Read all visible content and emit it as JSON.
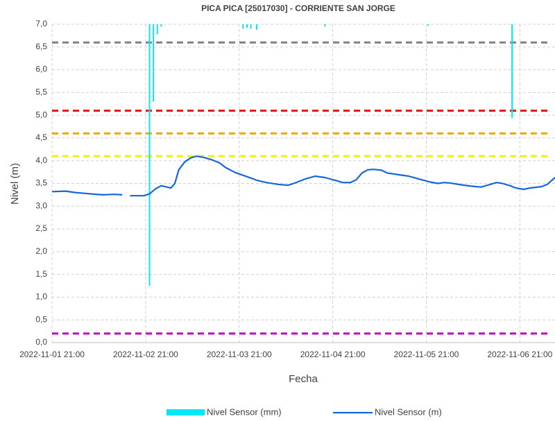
{
  "chart_data": {
    "type": "line",
    "title": "PICA PICA [25017030] - CORRIENTE SAN JORGE",
    "xlabel": "Fecha",
    "ylabel": "Nivel (m)",
    "xlim": [
      "2022-11-01 21:00",
      "2022-11-07 06:00"
    ],
    "xticks": [
      "2022-11-01 21:00",
      "2022-11-02 21:00",
      "2022-11-03 21:00",
      "2022-11-04 21:00",
      "2022-11-05 21:00",
      "2022-11-06 21:00"
    ],
    "ylim": [
      0,
      7
    ],
    "yticks": [
      {
        "value": 0,
        "label": "0,0"
      },
      {
        "value": 0.5,
        "label": "0,5"
      },
      {
        "value": 1,
        "label": "1,0"
      },
      {
        "value": 1.5,
        "label": "1,5"
      },
      {
        "value": 2,
        "label": "2,0"
      },
      {
        "value": 2.5,
        "label": "2,5"
      },
      {
        "value": 3,
        "label": "3,0"
      },
      {
        "value": 3.5,
        "label": "3,5"
      },
      {
        "value": 4,
        "label": "4,0"
      },
      {
        "value": 4.5,
        "label": "4,5"
      },
      {
        "value": 5,
        "label": "5,0"
      },
      {
        "value": 5.5,
        "label": "5,5"
      },
      {
        "value": 6,
        "label": "6,0"
      },
      {
        "value": 6.5,
        "label": "6,5"
      },
      {
        "value": 7,
        "label": "7,0"
      }
    ],
    "grid": true,
    "legend": "bottom",
    "thresholds": [
      {
        "value": 6.6,
        "color": "#808080"
      },
      {
        "value": 5.1,
        "color": "#e81010"
      },
      {
        "value": 4.6,
        "color": "#f0a800"
      },
      {
        "value": 4.1,
        "color": "#f5f000"
      },
      {
        "value": 0.2,
        "color": "#c000c0"
      }
    ],
    "bar_series": {
      "name": "Nivel Sensor (mm)",
      "color": "#00e8f8",
      "x": [
        "2022-11-02 22:00",
        "2022-11-02 23:00",
        "2022-11-03 00:00",
        "2022-11-03 01:00",
        "2022-11-03 22:00",
        "2022-11-03 23:00",
        "2022-11-04 00:00",
        "2022-11-04 01:30",
        "2022-11-04 19:00",
        "2022-11-05 21:30",
        "2022-11-06 19:00"
      ],
      "values": [
        1.25,
        5.3,
        6.78,
        6.95,
        6.9,
        6.92,
        6.9,
        6.88,
        6.95,
        6.97,
        4.94
      ]
    },
    "series": [
      {
        "name": "Nivel Sensor (m)",
        "color": "#1566d8",
        "x": [
          "2022-11-01 21:00",
          "2022-11-02 00:30",
          "2022-11-02 03:00",
          "2022-11-02 07:00",
          "2022-11-02 10:00",
          "2022-11-02 13:00",
          "2022-11-02 15:00",
          "2022-11-02 16:00",
          "2022-11-02 17:00",
          "2022-11-02 20:30",
          "2022-11-02 22:00",
          "2022-11-02 23:30",
          "2022-11-03 01:00",
          "2022-11-03 02:00",
          "2022-11-03 03:30",
          "2022-11-03 04:30",
          "2022-11-03 05:30",
          "2022-11-03 07:00",
          "2022-11-03 08:30",
          "2022-11-03 10:00",
          "2022-11-03 12:00",
          "2022-11-03 14:00",
          "2022-11-03 16:00",
          "2022-11-03 17:30",
          "2022-11-03 20:00",
          "2022-11-03 23:00",
          "2022-11-04 01:30",
          "2022-11-04 04:00",
          "2022-11-04 07:00",
          "2022-11-04 09:30",
          "2022-11-04 11:00",
          "2022-11-04 14:00",
          "2022-11-04 16:30",
          "2022-11-04 19:00",
          "2022-11-04 22:00",
          "2022-11-04 23:30",
          "2022-11-05 01:30",
          "2022-11-05 03:00",
          "2022-11-05 04:30",
          "2022-11-05 06:00",
          "2022-11-05 07:30",
          "2022-11-05 09:30",
          "2022-11-05 11:00",
          "2022-11-05 14:00",
          "2022-11-05 16:30",
          "2022-11-05 19:00",
          "2022-11-05 22:00",
          "2022-11-06 00:00",
          "2022-11-06 01:30",
          "2022-11-06 03:00",
          "2022-11-06 06:00",
          "2022-11-06 08:30",
          "2022-11-06 11:00",
          "2022-11-06 13:00",
          "2022-11-06 15:00",
          "2022-11-06 16:30",
          "2022-11-06 18:30",
          "2022-11-06 20:00",
          "2022-11-06 22:00",
          "2022-11-06 23:30",
          "2022-11-07 02:30",
          "2022-11-07 04:00",
          "2022-11-07 06:00"
        ],
        "values": [
          3.32,
          3.33,
          3.3,
          3.27,
          3.25,
          3.26,
          3.25,
          null,
          3.23,
          3.23,
          3.27,
          3.38,
          3.45,
          3.43,
          3.4,
          3.5,
          3.8,
          3.97,
          4.06,
          4.1,
          4.07,
          4.02,
          3.95,
          3.85,
          3.74,
          3.65,
          3.57,
          3.52,
          3.48,
          3.46,
          3.5,
          3.6,
          3.66,
          3.63,
          3.56,
          3.52,
          3.52,
          3.58,
          3.73,
          3.8,
          3.81,
          3.79,
          3.73,
          3.69,
          3.66,
          3.6,
          3.53,
          3.5,
          3.52,
          3.51,
          3.47,
          3.44,
          3.42,
          3.47,
          3.52,
          3.5,
          3.45,
          3.4,
          3.37,
          3.4,
          3.43,
          3.48,
          3.63
        ]
      }
    ]
  }
}
